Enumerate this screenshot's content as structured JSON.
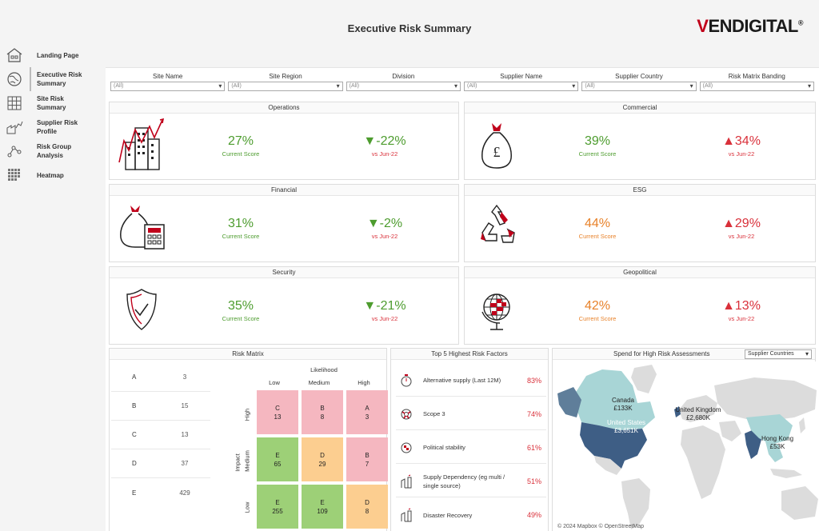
{
  "header": {
    "title": "Executive Risk Summary",
    "brand": "VENDIGITAL",
    "brand_v": "V",
    "brand_rest": "ENDIGITAL",
    "brand_reg": "®"
  },
  "sidebar": {
    "items": [
      {
        "label": "Landing Page",
        "icon": "home-icon"
      },
      {
        "label": "Executive Risk Summary",
        "icon": "globe-icon",
        "active": true
      },
      {
        "label": "Site Risk Summary",
        "icon": "grid-icon"
      },
      {
        "label": "Supplier Risk Profile",
        "icon": "factory-chart-icon"
      },
      {
        "label": "Risk Group Analysis",
        "icon": "network-icon"
      },
      {
        "label": "Heatmap",
        "icon": "heatmap-icon"
      }
    ]
  },
  "filters": [
    {
      "label": "Site Name",
      "value": "(All)"
    },
    {
      "label": "Site Region",
      "value": "(All)"
    },
    {
      "label": "Division",
      "value": "(All)"
    },
    {
      "label": "Supplier Name",
      "value": "(All)"
    },
    {
      "label": "Supplier Country",
      "value": "(All)"
    },
    {
      "label": "Risk Matrix Banding",
      "value": "(All)"
    }
  ],
  "cards": {
    "operations": {
      "title": "Operations",
      "score": "27%",
      "score_label": "Current Score",
      "change": "▼-22%",
      "change_label": "vs Jun-22"
    },
    "commercial": {
      "title": "Commercial",
      "score": "39%",
      "score_label": "Current Score",
      "change": "▲34%",
      "change_label": "vs Jun-22"
    },
    "financial": {
      "title": "Financial",
      "score": "31%",
      "score_label": "Current Score",
      "change": "▼-2%",
      "change_label": "vs Jun-22"
    },
    "esg": {
      "title": "ESG",
      "score": "44%",
      "score_label": "Current Score",
      "change": "▲29%",
      "change_label": "vs Jun-22"
    },
    "security": {
      "title": "Security",
      "score": "35%",
      "score_label": "Current Score",
      "change": "▼-21%",
      "change_label": "vs Jun-22"
    },
    "geopolitical": {
      "title": "Geopolitical",
      "score": "42%",
      "score_label": "Current Score",
      "change": "▲13%",
      "change_label": "vs Jun-22"
    }
  },
  "colors": {
    "green": "#4d9c2e",
    "orange": "#e8822a",
    "red": "#d9303a",
    "brand_red": "#c0001a"
  },
  "risk_matrix": {
    "title": "Risk Matrix",
    "list": [
      {
        "band": "A",
        "count": "3"
      },
      {
        "band": "B",
        "count": "15"
      },
      {
        "band": "C",
        "count": "13"
      },
      {
        "band": "D",
        "count": "37"
      },
      {
        "band": "E",
        "count": "429"
      }
    ],
    "likelihood_label": "Likelihood",
    "impact_label": "Impact",
    "likelihood": [
      "Low",
      "Medium",
      "High"
    ],
    "impact": [
      "High",
      "Medium",
      "Low"
    ],
    "cells": [
      [
        {
          "band": "C",
          "value": "13",
          "color": "pink"
        },
        {
          "band": "B",
          "value": "8",
          "color": "pink"
        },
        {
          "band": "A",
          "value": "3",
          "color": "pink"
        }
      ],
      [
        {
          "band": "E",
          "value": "65",
          "color": "green"
        },
        {
          "band": "D",
          "value": "29",
          "color": "orange"
        },
        {
          "band": "B",
          "value": "7",
          "color": "pink"
        }
      ],
      [
        {
          "band": "E",
          "value": "255",
          "color": "green"
        },
        {
          "band": "E",
          "value": "109",
          "color": "green"
        },
        {
          "band": "D",
          "value": "8",
          "color": "orange"
        }
      ]
    ]
  },
  "top_factors": {
    "title": "Top 5 Highest Risk Factors",
    "items": [
      {
        "name": "Alternative supply (Last 12M)",
        "pct": "83%",
        "icon": "stopwatch-icon"
      },
      {
        "name": "Scope 3",
        "pct": "74%",
        "icon": "lifebuoy-icon"
      },
      {
        "name": "Political stability",
        "pct": "61%",
        "icon": "globe-icon"
      },
      {
        "name": "Supply Dependency (eg multi / single source)",
        "pct": "51%",
        "icon": "factory-icon"
      },
      {
        "name": "Disaster Recovery",
        "pct": "49%",
        "icon": "factory-icon"
      }
    ]
  },
  "map": {
    "title": "Spend for High Risk Assessments",
    "selector": "Supplier Countries",
    "labels": [
      {
        "country": "Canada",
        "value": "£133K"
      },
      {
        "country": "United States",
        "value": "£3,651K"
      },
      {
        "country": "United Kingdom",
        "value": "£2,680K"
      },
      {
        "country": "Hong Kong",
        "value": "£53K"
      }
    ],
    "attribution": "© 2024 Mapbox  © OpenStreetMap"
  }
}
